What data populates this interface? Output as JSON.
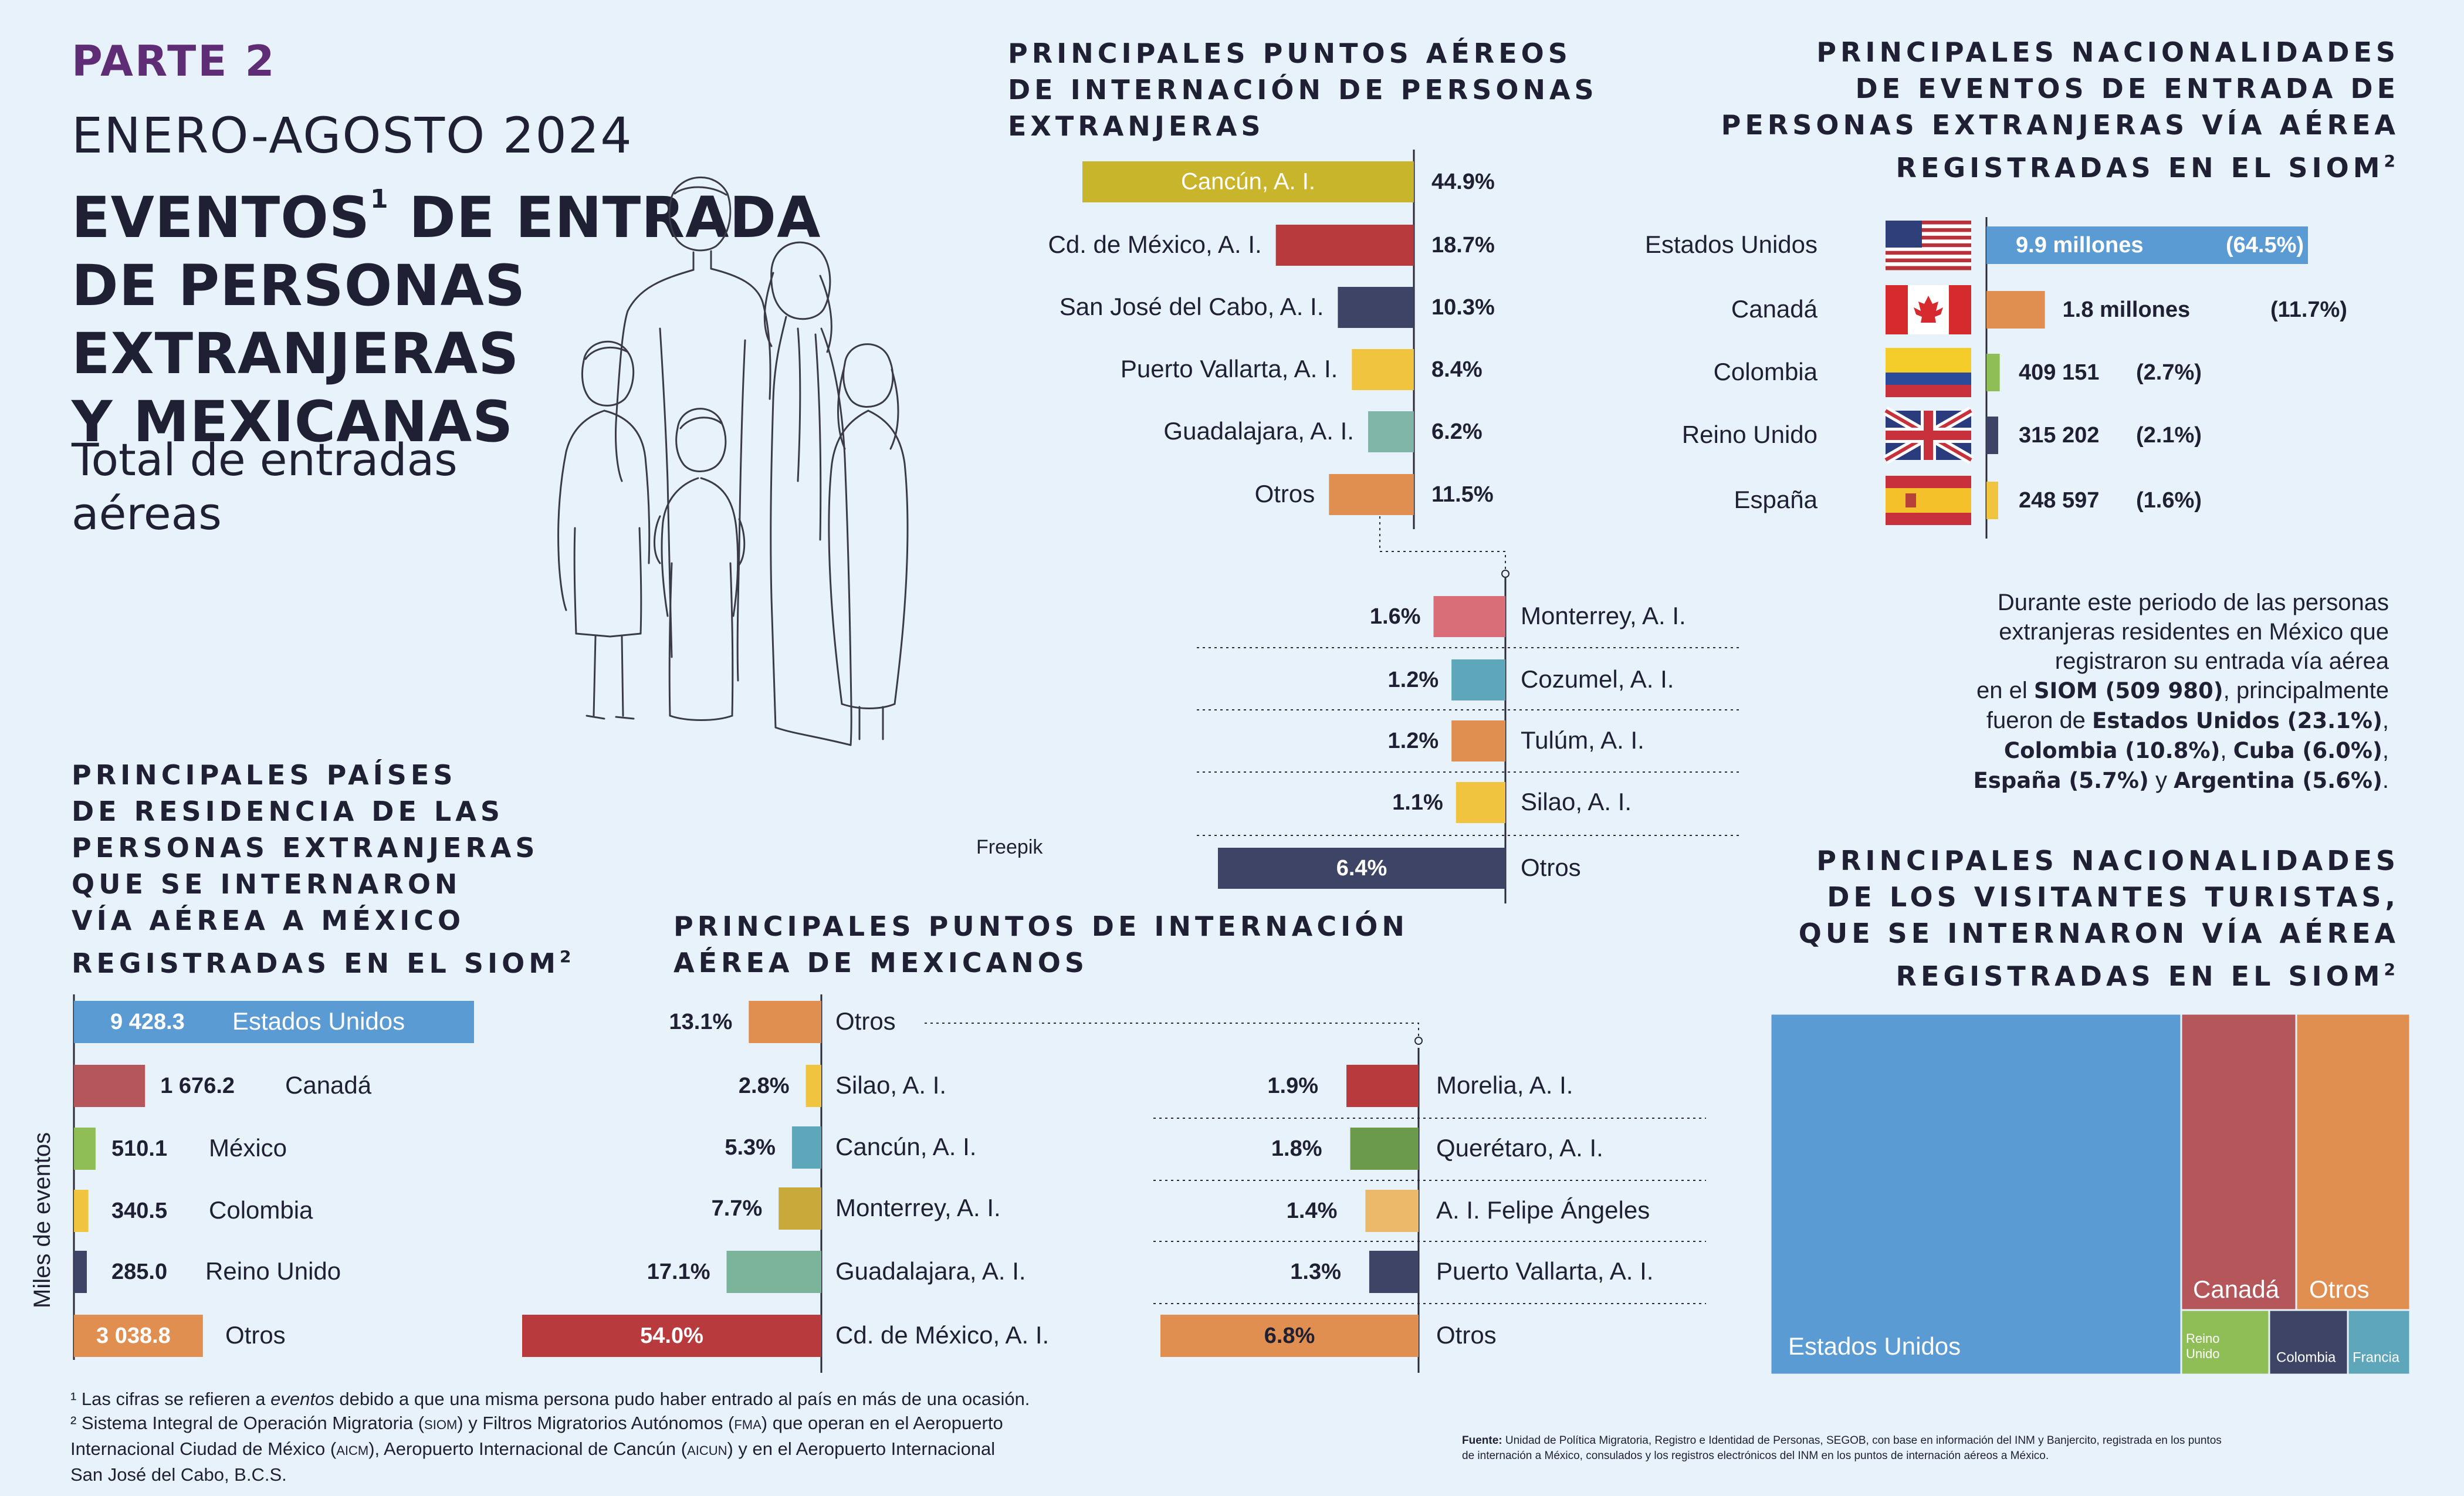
{
  "colors": {
    "background": "#e8f2fa",
    "text": "#1f2033",
    "accent_purple": "#5e2d76",
    "mustard": "#c8b52c",
    "red": "#b83a3d",
    "navy": "#3e4466",
    "yellow": "#f0c43f",
    "teal": "#7fb6a8",
    "orange": "#e08f50",
    "pink": "#d96d78",
    "cyan": "#5ea6b9",
    "blue": "#5b9bd4",
    "brick": "#b5575a",
    "green": "#8fbe57",
    "dark_green": "#6a9a4a",
    "light_orange": "#ebb96a",
    "ochre": "#c9a93a",
    "sage": "#7bb49b"
  },
  "header": {
    "parte": "PARTE 2",
    "period": "ENERO-AGOSTO 2024",
    "title_lines": [
      "EVENTOS",
      "DE ENTRADA",
      "DE PERSONAS",
      "EXTRANJERAS",
      "Y MEXICANAS"
    ],
    "title_sup": "1",
    "subtitle_lines": [
      "Total de entradas",
      "aéreas"
    ],
    "image_credit": "Freepik",
    "illustration_icon": "family-line-drawing-icon"
  },
  "sections": {
    "foreign_airports_title": [
      "PRINCIPALES PUNTOS AÉREOS",
      "DE INTERNACIÓN DE PERSONAS",
      "EXTRANJERAS"
    ],
    "foreign_nationalities_title": [
      "PRINCIPALES NACIONALIDADES",
      "DE EVENTOS DE ENTRADA DE",
      "PERSONAS EXTRANJERAS VÍA AÉREA",
      "REGISTRADAS EN EL SIOM"
    ],
    "residence_title": [
      "PRINCIPALES PAÍSES",
      "DE RESIDENCIA DE LAS",
      "PERSONAS EXTRANJERAS",
      "QUE SE INTERNARON",
      "VÍA AÉREA A MÉXICO",
      "REGISTRADAS EN EL SIOM"
    ],
    "mexican_airports_title": [
      "PRINCIPALES PUNTOS DE INTERNACIÓN",
      "AÉREA DE MEXICANOS"
    ],
    "tourists_title": [
      "PRINCIPALES NACIONALIDADES",
      "DE LOS VISITANTES TURISTAS,",
      "QUE SE INTERNARON VÍA AÉREA",
      "REGISTRADAS EN EL SIOM"
    ],
    "title_sup": "2",
    "y_axis_label": "Miles de eventos"
  },
  "paragraph": {
    "plain": [
      "Durante este periodo de las personas",
      "extranjeras residentes en México que",
      "registraron su entrada vía aérea",
      "en el ",
      ", principalmente",
      "fueron de ",
      ", ",
      " y ",
      "."
    ],
    "bold": [
      "SIOM (509 980)",
      "Estados Unidos (23.1%)",
      "Colombia (10.8%)",
      "Cuba (6.0%)",
      "España (5.7%)",
      "Argentina (5.6%)"
    ]
  },
  "footnotes": [
    [
      "¹ Las cifras se refieren a ",
      "eventos",
      " debido a que una misma persona pudo haber entrado al país en más de una ocasión."
    ],
    [
      "² Sistema Integral de Operación Migratoria (",
      "SIOM",
      ") y Filtros Migratorios Autónomos (",
      "FMA",
      ") que operan en el Aeropuerto"
    ],
    [
      "Internacional Ciudad de México (",
      "AICM",
      "), Aeropuerto Internacional de Cancún (",
      "AICUN",
      ") y en el Aeropuerto Internacional"
    ],
    [
      "San José del Cabo, B.C.S."
    ]
  ],
  "source": {
    "label": "Fuente:",
    "lines": [
      "Unidad de Política Migratoria, Registro e Identidad de Personas, SEGOB, con base en información del INM y Banjercito, registrada en los puntos",
      "de internación a México, consulados y los registros electrónicos del INM en los puntos de internación aéreos a México."
    ]
  },
  "chart_data": [
    {
      "id": "foreign_airports_main",
      "type": "bar",
      "orientation": "horizontal",
      "categories": [
        "Cancún, A. I.",
        "Cd. de México, A. I.",
        "San José del Cabo, A. I.",
        "Puerto Vallarta, A. I.",
        "Guadalajara, A. I.",
        "Otros"
      ],
      "values": [
        44.9,
        18.7,
        10.3,
        8.4,
        6.2,
        11.5
      ],
      "labels": [
        "44.9%",
        "18.7%",
        "10.3%",
        "8.4%",
        "6.2%",
        "11.5%"
      ],
      "unit": "%"
    },
    {
      "id": "foreign_airports_otros",
      "type": "bar",
      "orientation": "horizontal",
      "categories": [
        "Monterrey, A. I.",
        "Cozumel, A. I.",
        "Tulúm, A. I.",
        "Silao, A. I.",
        "Otros"
      ],
      "values": [
        1.6,
        1.2,
        1.2,
        1.1,
        6.4
      ],
      "labels": [
        "1.6%",
        "1.2%",
        "1.2%",
        "1.1%",
        "6.4%"
      ],
      "unit": "%"
    },
    {
      "id": "foreign_nationalities",
      "type": "bar",
      "orientation": "horizontal",
      "categories": [
        "Estados Unidos",
        "Canadá",
        "Colombia",
        "Reino Unido",
        "España"
      ],
      "value_labels": [
        "9.9 millones",
        "1.8 millones",
        "409 151",
        "315 202",
        "248 597"
      ],
      "values": [
        9900000,
        1800000,
        409151,
        315202,
        248597
      ],
      "pct_labels": [
        "(64.5%)",
        "(11.7%)",
        "(2.7%)",
        "(2.1%)",
        "(1.6%)"
      ],
      "flags": [
        "usa-flag-icon",
        "canada-flag-icon",
        "colombia-flag-icon",
        "uk-flag-icon",
        "spain-flag-icon"
      ]
    },
    {
      "id": "residence_countries",
      "type": "bar",
      "orientation": "horizontal",
      "categories": [
        "Estados Unidos",
        "Canadá",
        "México",
        "Colombia",
        "Reino Unido",
        "Otros"
      ],
      "values": [
        9428.3,
        1676.2,
        510.1,
        340.5,
        285.0,
        3038.8
      ],
      "labels": [
        "9 428.3",
        "1 676.2",
        "510.1",
        "340.5",
        "285.0",
        "3 038.8"
      ],
      "ylabel": "Miles de eventos"
    },
    {
      "id": "mexican_airports_main",
      "type": "bar",
      "orientation": "horizontal",
      "categories": [
        "Otros",
        "Silao, A. I.",
        "Cancún, A. I.",
        "Monterrey, A. I.",
        "Guadalajara, A. I.",
        "Cd. de México, A. I."
      ],
      "values": [
        13.1,
        2.8,
        5.3,
        7.7,
        17.1,
        54.0
      ],
      "labels": [
        "13.1%",
        "2.8%",
        "5.3%",
        "7.7%",
        "17.1%",
        "54.0%"
      ],
      "unit": "%"
    },
    {
      "id": "mexican_airports_otros",
      "type": "bar",
      "orientation": "horizontal",
      "categories": [
        "Morelia, A. I.",
        "Querétaro, A. I.",
        "A. I. Felipe Ángeles",
        "Puerto Vallarta, A. I.",
        "Otros"
      ],
      "values": [
        1.9,
        1.8,
        1.4,
        1.3,
        6.8
      ],
      "labels": [
        "1.9%",
        "1.8%",
        "1.4%",
        "1.3%",
        "6.8%"
      ],
      "unit": "%"
    },
    {
      "id": "tourist_nationalities",
      "type": "treemap",
      "categories": [
        "Estados Unidos",
        "Canadá",
        "Otros",
        "Reino Unido",
        "Colombia",
        "Francia"
      ],
      "approx_area_share": [
        0.6,
        0.095,
        0.095,
        0.05,
        0.042,
        0.03
      ]
    }
  ]
}
